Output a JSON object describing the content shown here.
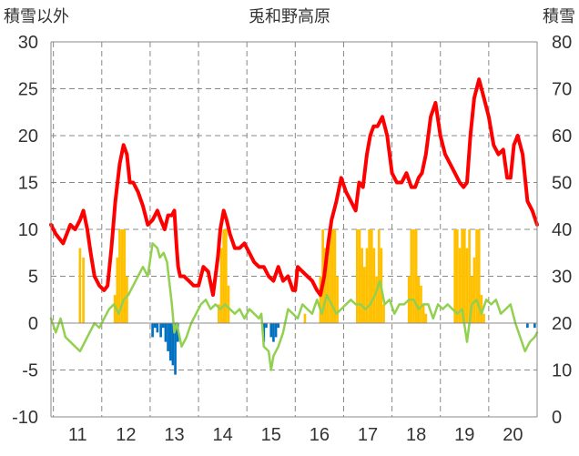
{
  "chart_data": {
    "type": "bar+line",
    "title": "兎和野高原",
    "ylabel_left": "積雪以外",
    "ylabel_right": "積雪",
    "x_ticks": [
      "11",
      "12",
      "13",
      "14",
      "15",
      "16",
      "17",
      "18",
      "19",
      "20"
    ],
    "x_range": [
      10.45,
      20.5
    ],
    "ylim_left": [
      -10,
      30
    ],
    "ylim_right": [
      0,
      80
    ],
    "left_ticks": [
      "30",
      "25",
      "20",
      "15",
      "10",
      "5",
      "0",
      "-5",
      "-10"
    ],
    "right_ticks": [
      "80",
      "70",
      "60",
      "50",
      "40",
      "30",
      "20",
      "10",
      "0"
    ],
    "grid": {
      "horizontal": "dashed",
      "vertical": "dashed"
    },
    "legend": "none",
    "colors": {
      "red_line": "#ff0000",
      "green_line": "#92d050",
      "orange_bar": "#ffc000",
      "blue_bar": "#0070c0",
      "grid": "#888888",
      "axis": "#888888"
    },
    "series": [
      {
        "kind": "line",
        "axis": "left",
        "color": "#ff0000",
        "x": [
          10.45,
          10.55,
          10.7,
          10.85,
          10.95,
          11.05,
          11.12,
          11.2,
          11.27,
          11.35,
          11.45,
          11.55,
          11.62,
          11.7,
          11.78,
          11.87,
          11.95,
          12.02,
          12.08,
          12.15,
          12.25,
          12.35,
          12.45,
          12.55,
          12.65,
          12.72,
          12.8,
          12.87,
          12.95,
          13.0,
          13.05,
          13.08,
          13.12,
          13.2,
          13.3,
          13.4,
          13.5,
          13.6,
          13.7,
          13.8,
          13.9,
          13.95,
          14.02,
          14.08,
          14.15,
          14.25,
          14.35,
          14.45,
          14.55,
          14.65,
          14.75,
          14.85,
          14.95,
          15.05,
          15.15,
          15.25,
          15.35,
          15.45,
          15.5,
          15.55,
          15.65,
          15.75,
          15.85,
          15.95,
          16.02,
          16.1,
          16.18,
          16.25,
          16.35,
          16.45,
          16.55,
          16.65,
          16.75,
          16.82,
          16.9,
          16.98,
          17.05,
          17.12,
          17.2,
          17.3,
          17.4,
          17.5,
          17.6,
          17.7,
          17.8,
          17.9,
          17.98,
          18.05,
          18.12,
          18.2,
          18.3,
          18.4,
          18.5,
          18.6,
          18.7,
          18.8,
          18.9,
          18.98,
          19.05,
          19.12,
          19.2,
          19.3,
          19.4,
          19.5,
          19.6,
          19.7,
          19.8,
          19.88,
          19.95,
          20.02,
          20.1,
          20.2,
          20.3,
          20.4,
          20.5
        ],
        "values": [
          10.5,
          9.5,
          8.5,
          10.5,
          10.0,
          11.0,
          12.0,
          10.0,
          7.5,
          5.0,
          4.0,
          3.5,
          4.0,
          8.0,
          13.0,
          17.0,
          19.0,
          18.0,
          15.0,
          15.0,
          14.0,
          12.5,
          10.5,
          11.0,
          12.0,
          11.0,
          10.0,
          11.5,
          11.5,
          12.0,
          8.0,
          6.0,
          5.0,
          5.0,
          4.5,
          4.0,
          4.0,
          6.0,
          5.5,
          3.0,
          7.0,
          10.0,
          12.0,
          11.0,
          9.5,
          8.0,
          8.0,
          8.5,
          7.5,
          6.5,
          6.0,
          6.0,
          5.0,
          4.5,
          6.0,
          4.5,
          5.0,
          3.5,
          3.5,
          6.0,
          5.5,
          5.0,
          4.5,
          3.5,
          3.0,
          5.0,
          8.5,
          11.0,
          13.0,
          15.5,
          14.0,
          13.0,
          12.0,
          15.0,
          14.5,
          18.0,
          20.0,
          21.0,
          21.0,
          22.0,
          20.0,
          16.0,
          15.0,
          15.0,
          16.0,
          14.5,
          14.5,
          15.5,
          16.0,
          18.0,
          22.0,
          23.5,
          20.0,
          18.0,
          17.0,
          16.0,
          15.0,
          14.5,
          15.0,
          20.0,
          24.0,
          26.0,
          24.0,
          22.0,
          19.0,
          18.0,
          18.5,
          15.5,
          15.5,
          19.0,
          20.0,
          18.0,
          13.0,
          12.0,
          10.5
        ]
      },
      {
        "kind": "line",
        "axis": "left",
        "color": "#92d050",
        "x": [
          10.45,
          10.55,
          10.65,
          10.75,
          10.85,
          10.95,
          11.05,
          11.15,
          11.25,
          11.35,
          11.45,
          11.55,
          11.65,
          11.75,
          11.85,
          11.95,
          12.05,
          12.15,
          12.25,
          12.35,
          12.45,
          12.55,
          12.65,
          12.7,
          12.78,
          12.85,
          12.95,
          13.0,
          13.05,
          13.15,
          13.25,
          13.35,
          13.45,
          13.55,
          13.65,
          13.75,
          13.85,
          13.95,
          14.05,
          14.15,
          14.25,
          14.35,
          14.45,
          14.55,
          14.65,
          14.75,
          14.8,
          14.85,
          14.95,
          15.0,
          15.05,
          15.15,
          15.25,
          15.35,
          15.45,
          15.55,
          15.65,
          15.75,
          15.85,
          15.95,
          16.05,
          16.15,
          16.25,
          16.35,
          16.45,
          16.55,
          16.65,
          16.75,
          16.85,
          16.95,
          17.05,
          17.15,
          17.25,
          17.35,
          17.45,
          17.55,
          17.65,
          17.75,
          17.85,
          17.95,
          18.05,
          18.15,
          18.25,
          18.35,
          18.45,
          18.55,
          18.65,
          18.75,
          18.85,
          18.95,
          19.05,
          19.15,
          19.25,
          19.35,
          19.45,
          19.55,
          19.65,
          19.75,
          19.85,
          19.95,
          20.05,
          20.15,
          20.25,
          20.35,
          20.45,
          20.5
        ],
        "values": [
          0.5,
          -1.0,
          0.5,
          -1.5,
          -2.0,
          -2.5,
          -3.0,
          -2.0,
          -1.0,
          0.0,
          -0.5,
          0.5,
          1.5,
          2.0,
          1.0,
          2.5,
          3.0,
          4.0,
          5.0,
          6.0,
          5.0,
          8.5,
          8.0,
          7.0,
          7.5,
          6.5,
          2.0,
          -1.0,
          0.0,
          -2.5,
          -1.5,
          0.0,
          1.0,
          2.0,
          2.5,
          1.5,
          2.0,
          1.5,
          2.0,
          1.5,
          1.0,
          1.5,
          0.5,
          1.5,
          1.0,
          0.5,
          1.0,
          -2.5,
          -3.0,
          -5.0,
          -3.5,
          -2.5,
          -1.0,
          1.5,
          1.0,
          0.5,
          2.0,
          1.5,
          1.0,
          2.5,
          1.0,
          3.0,
          2.0,
          1.0,
          1.5,
          2.0,
          2.5,
          2.0,
          2.0,
          1.5,
          2.0,
          3.0,
          4.5,
          2.0,
          2.5,
          1.0,
          2.0,
          2.0,
          2.5,
          2.5,
          1.5,
          2.0,
          2.0,
          0.5,
          2.0,
          1.5,
          2.0,
          1.5,
          1.0,
          1.5,
          -2.0,
          2.0,
          2.5,
          1.0,
          2.5,
          2.0,
          2.5,
          1.0,
          1.5,
          2.0,
          0.0,
          -1.5,
          -3.0,
          -2.0,
          -1.5,
          -1.0
        ]
      },
      {
        "kind": "bar",
        "axis": "right",
        "color": "#ffc000",
        "x": [
          11.05,
          11.12,
          11.77,
          11.82,
          11.87,
          11.92,
          11.97,
          12.02,
          13.92,
          13.97,
          14.02,
          14.07,
          14.12,
          16.02,
          16.07,
          16.12,
          16.17,
          16.22,
          16.27,
          16.32,
          16.37,
          16.78,
          16.83,
          16.88,
          16.93,
          16.98,
          17.03,
          17.08,
          17.13,
          17.18,
          17.23,
          17.28,
          17.33,
          17.85,
          17.9,
          17.95,
          18.0,
          18.05,
          18.1,
          18.15,
          18.2,
          18.25,
          18.8,
          18.85,
          18.9,
          18.95,
          19.0,
          19.05,
          19.1,
          19.15,
          19.2,
          19.25,
          19.3,
          19.35,
          19.4,
          15.7
        ],
        "values": [
          36,
          34,
          26,
          34,
          40,
          40,
          40,
          30,
          24,
          36,
          40,
          40,
          28,
          30,
          40,
          36,
          34,
          40,
          40,
          40,
          30,
          40,
          40,
          36,
          32,
          36,
          40,
          40,
          36,
          30,
          40,
          36,
          24,
          30,
          40,
          40,
          40,
          30,
          28,
          24,
          22,
          20,
          40,
          40,
          36,
          40,
          40,
          36,
          40,
          30,
          34,
          40,
          40,
          26,
          22,
          22
        ]
      },
      {
        "kind": "bar",
        "axis": "left",
        "color": "#0070c0",
        "x": [
          12.55,
          12.6,
          12.65,
          12.72,
          12.77,
          12.82,
          12.87,
          12.92,
          12.97,
          13.02,
          13.07,
          14.85,
          14.9,
          15.0,
          15.05,
          15.1,
          15.15,
          20.3,
          20.45
        ],
        "values": [
          -1.5,
          -0.5,
          -1.0,
          -1.5,
          -0.5,
          -2.0,
          -3.0,
          -4.0,
          -4.5,
          -5.5,
          -2.0,
          -2.0,
          -0.5,
          -1.5,
          -2.0,
          -1.5,
          -0.5,
          -0.5,
          -0.5
        ]
      }
    ]
  }
}
